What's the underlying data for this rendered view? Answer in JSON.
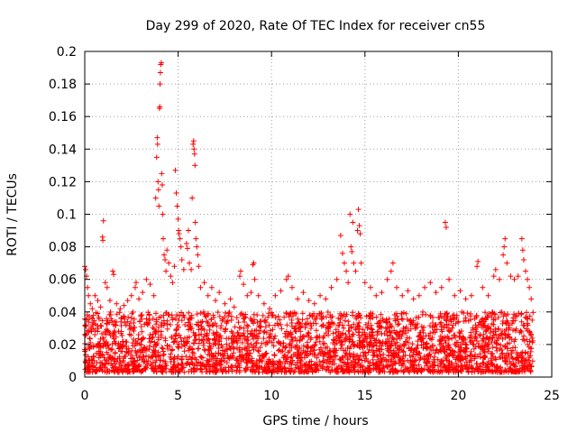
{
  "chart_data": {
    "type": "scatter",
    "title": "Day 299 of 2020, Rate Of TEC Index for receiver cn55",
    "xlabel": "GPS time / hours",
    "ylabel": "ROTI / TECUs",
    "xlim": [
      0,
      25
    ],
    "ylim": [
      0,
      0.2
    ],
    "xticks": [
      0,
      5,
      10,
      15,
      20,
      25
    ],
    "xtick_labels": [
      "0",
      "5",
      "10",
      "15",
      "20",
      "25"
    ],
    "yticks": [
      0,
      0.02,
      0.04,
      0.06,
      0.08,
      0.1,
      0.12,
      0.14,
      0.16,
      0.18,
      0.2
    ],
    "ytick_labels": [
      "0",
      "0.02",
      "0.04",
      "0.06",
      "0.08",
      "0.1",
      "0.12",
      "0.14",
      "0.16",
      "0.18",
      "0.2"
    ],
    "grid": true,
    "marker": "plus",
    "color": "#ff0000",
    "series": [
      {
        "points": [
          [
            0.0,
            0.068
          ],
          [
            0.05,
            0.066
          ],
          [
            0.1,
            0.062
          ],
          [
            0.15,
            0.055
          ],
          [
            0.2,
            0.05
          ],
          [
            0.3,
            0.045
          ],
          [
            0.4,
            0.042
          ],
          [
            0.55,
            0.05
          ],
          [
            0.7,
            0.047
          ],
          [
            0.85,
            0.043
          ],
          [
            1.0,
            0.096
          ],
          [
            0.95,
            0.086
          ],
          [
            0.97,
            0.084
          ],
          [
            1.1,
            0.058
          ],
          [
            1.2,
            0.055
          ],
          [
            1.35,
            0.047
          ],
          [
            1.5,
            0.065
          ],
          [
            1.55,
            0.063
          ],
          [
            1.7,
            0.045
          ],
          [
            1.9,
            0.042
          ],
          [
            2.1,
            0.044
          ],
          [
            2.3,
            0.047
          ],
          [
            2.5,
            0.05
          ],
          [
            2.7,
            0.055
          ],
          [
            2.75,
            0.058
          ],
          [
            2.9,
            0.048
          ],
          [
            3.1,
            0.052
          ],
          [
            3.3,
            0.06
          ],
          [
            3.5,
            0.057
          ],
          [
            3.7,
            0.05
          ],
          [
            3.8,
            0.11
          ],
          [
            3.85,
            0.135
          ],
          [
            3.88,
            0.147
          ],
          [
            3.9,
            0.143
          ],
          [
            3.92,
            0.12
          ],
          [
            3.95,
            0.115
          ],
          [
            3.97,
            0.105
          ],
          [
            4.0,
            0.165
          ],
          [
            4.02,
            0.166
          ],
          [
            4.03,
            0.18
          ],
          [
            4.05,
            0.187
          ],
          [
            4.07,
            0.192
          ],
          [
            4.1,
            0.193
          ],
          [
            4.12,
            0.125
          ],
          [
            4.15,
            0.118
          ],
          [
            4.18,
            0.1
          ],
          [
            4.2,
            0.085
          ],
          [
            4.25,
            0.075
          ],
          [
            4.3,
            0.072
          ],
          [
            4.35,
            0.065
          ],
          [
            4.4,
            0.078
          ],
          [
            4.5,
            0.07
          ],
          [
            4.6,
            0.062
          ],
          [
            4.7,
            0.058
          ],
          [
            4.8,
            0.068
          ],
          [
            4.85,
            0.127
          ],
          [
            4.9,
            0.113
          ],
          [
            4.95,
            0.105
          ],
          [
            5.0,
            0.097
          ],
          [
            5.03,
            0.09
          ],
          [
            5.05,
            0.088
          ],
          [
            5.1,
            0.085
          ],
          [
            5.15,
            0.08
          ],
          [
            5.2,
            0.072
          ],
          [
            5.3,
            0.066
          ],
          [
            5.45,
            0.082
          ],
          [
            5.5,
            0.079
          ],
          [
            5.55,
            0.09
          ],
          [
            5.6,
            0.07
          ],
          [
            5.7,
            0.066
          ],
          [
            5.75,
            0.11
          ],
          [
            5.8,
            0.143
          ],
          [
            5.83,
            0.145
          ],
          [
            5.85,
            0.14
          ],
          [
            5.88,
            0.137
          ],
          [
            5.9,
            0.13
          ],
          [
            5.92,
            0.095
          ],
          [
            5.95,
            0.085
          ],
          [
            6.0,
            0.08
          ],
          [
            6.05,
            0.075
          ],
          [
            6.1,
            0.068
          ],
          [
            6.2,
            0.055
          ],
          [
            6.4,
            0.058
          ],
          [
            6.6,
            0.05
          ],
          [
            6.8,
            0.055
          ],
          [
            7.0,
            0.047
          ],
          [
            7.2,
            0.052
          ],
          [
            7.5,
            0.045
          ],
          [
            7.8,
            0.048
          ],
          [
            8.0,
            0.043
          ],
          [
            8.3,
            0.062
          ],
          [
            8.35,
            0.065
          ],
          [
            8.5,
            0.057
          ],
          [
            8.7,
            0.05
          ],
          [
            8.9,
            0.052
          ],
          [
            9.0,
            0.069
          ],
          [
            9.05,
            0.07
          ],
          [
            9.1,
            0.06
          ],
          [
            9.3,
            0.05
          ],
          [
            9.6,
            0.045
          ],
          [
            9.9,
            0.042
          ],
          [
            10.2,
            0.05
          ],
          [
            10.5,
            0.053
          ],
          [
            10.8,
            0.06
          ],
          [
            10.9,
            0.062
          ],
          [
            11.1,
            0.055
          ],
          [
            11.4,
            0.048
          ],
          [
            11.7,
            0.052
          ],
          [
            12.0,
            0.047
          ],
          [
            12.3,
            0.045
          ],
          [
            12.6,
            0.05
          ],
          [
            12.9,
            0.048
          ],
          [
            13.2,
            0.055
          ],
          [
            13.5,
            0.06
          ],
          [
            13.7,
            0.087
          ],
          [
            13.8,
            0.076
          ],
          [
            13.9,
            0.07
          ],
          [
            14.0,
            0.065
          ],
          [
            14.1,
            0.058
          ],
          [
            14.2,
            0.1
          ],
          [
            14.25,
            0.08
          ],
          [
            14.3,
            0.077
          ],
          [
            14.35,
            0.095
          ],
          [
            14.4,
            0.07
          ],
          [
            14.5,
            0.065
          ],
          [
            14.6,
            0.09
          ],
          [
            14.65,
            0.103
          ],
          [
            14.7,
            0.093
          ],
          [
            14.75,
            0.088
          ],
          [
            14.8,
            0.07
          ],
          [
            15.0,
            0.058
          ],
          [
            15.3,
            0.055
          ],
          [
            15.6,
            0.05
          ],
          [
            15.9,
            0.052
          ],
          [
            16.2,
            0.06
          ],
          [
            16.4,
            0.065
          ],
          [
            16.5,
            0.07
          ],
          [
            16.7,
            0.055
          ],
          [
            17.0,
            0.05
          ],
          [
            17.3,
            0.053
          ],
          [
            17.6,
            0.048
          ],
          [
            17.9,
            0.05
          ],
          [
            18.2,
            0.055
          ],
          [
            18.5,
            0.058
          ],
          [
            18.8,
            0.052
          ],
          [
            19.1,
            0.055
          ],
          [
            19.3,
            0.095
          ],
          [
            19.35,
            0.092
          ],
          [
            19.5,
            0.06
          ],
          [
            19.8,
            0.05
          ],
          [
            20.1,
            0.053
          ],
          [
            20.4,
            0.048
          ],
          [
            20.7,
            0.05
          ],
          [
            21.0,
            0.068
          ],
          [
            21.05,
            0.071
          ],
          [
            21.3,
            0.055
          ],
          [
            21.6,
            0.05
          ],
          [
            21.9,
            0.062
          ],
          [
            22.0,
            0.066
          ],
          [
            22.2,
            0.06
          ],
          [
            22.4,
            0.075
          ],
          [
            22.45,
            0.08
          ],
          [
            22.5,
            0.085
          ],
          [
            22.6,
            0.07
          ],
          [
            22.8,
            0.062
          ],
          [
            23.0,
            0.06
          ],
          [
            23.2,
            0.062
          ],
          [
            23.4,
            0.085
          ],
          [
            23.45,
            0.078
          ],
          [
            23.5,
            0.072
          ],
          [
            23.6,
            0.065
          ],
          [
            23.7,
            0.06
          ],
          [
            23.8,
            0.055
          ],
          [
            23.9,
            0.048
          ],
          [
            23.95,
            0.035
          ]
        ],
        "band_x": [
          0,
          24
        ],
        "band_y": [
          0.003,
          0.04
        ],
        "band_points": 2800
      }
    ]
  }
}
